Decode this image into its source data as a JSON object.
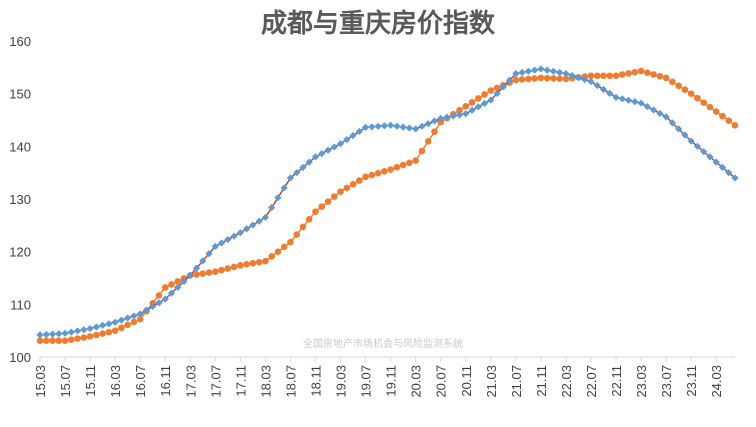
{
  "chart_data": {
    "type": "line",
    "title": "成都与重庆房价指数",
    "watermark": "全国房地产市场机会与风险监测系统",
    "xlabel": "",
    "ylabel": "",
    "ylim": [
      100,
      160
    ],
    "yticks": [
      "100",
      "110",
      "120",
      "130",
      "140",
      "150",
      "160"
    ],
    "grid": false,
    "legend": "none",
    "x_tick_labels": [
      "15.03",
      "15.07",
      "15.11",
      "16.03",
      "16.07",
      "16.11",
      "17.03",
      "17.07",
      "17.11",
      "18.03",
      "18.07",
      "18.11",
      "19.03",
      "19.07",
      "19.11",
      "20.03",
      "20.07",
      "20.11",
      "21.03",
      "21.07",
      "21.11",
      "22.03",
      "22.07",
      "22.11",
      "23.03",
      "23.07",
      "23.11",
      "24.03"
    ],
    "x_start": "2015-03",
    "x_end": "2024-06",
    "series": [
      {
        "name": "",
        "color": "#5B9BD5",
        "line_color": "#C0392B",
        "marker": "diamond",
        "anchors": [
          [
            "2015-03",
            104.2
          ],
          [
            "2015-07",
            104.5
          ],
          [
            "2015-11",
            105.4
          ],
          [
            "2016-03",
            106.6
          ],
          [
            "2016-07",
            108.2
          ],
          [
            "2016-11",
            111.0
          ],
          [
            "2017-03",
            115.5
          ],
          [
            "2017-07",
            121.0
          ],
          [
            "2017-11",
            123.6
          ],
          [
            "2018-03",
            126.5
          ],
          [
            "2018-07",
            134.0
          ],
          [
            "2018-11",
            138.0
          ],
          [
            "2019-03",
            140.5
          ],
          [
            "2019-07",
            143.6
          ],
          [
            "2019-11",
            144.0
          ],
          [
            "2020-03",
            143.3
          ],
          [
            "2020-07",
            145.3
          ],
          [
            "2020-11",
            146.2
          ],
          [
            "2021-03",
            148.8
          ],
          [
            "2021-07",
            153.8
          ],
          [
            "2021-11",
            154.7
          ],
          [
            "2022-03",
            153.8
          ],
          [
            "2022-07",
            152.3
          ],
          [
            "2022-11",
            149.3
          ],
          [
            "2023-03",
            148.2
          ],
          [
            "2023-07",
            145.6
          ],
          [
            "2023-11",
            141.0
          ],
          [
            "2024-03",
            137.0
          ],
          [
            "2024-06",
            134.0
          ]
        ]
      },
      {
        "name": "",
        "color": "#ED7D31",
        "marker": "circle",
        "anchors": [
          [
            "2015-03",
            103.1
          ],
          [
            "2015-07",
            103.1
          ],
          [
            "2015-11",
            103.9
          ],
          [
            "2016-03",
            105.0
          ],
          [
            "2016-07",
            107.2
          ],
          [
            "2016-11",
            113.2
          ],
          [
            "2017-03",
            115.5
          ],
          [
            "2017-07",
            116.2
          ],
          [
            "2017-11",
            117.4
          ],
          [
            "2018-03",
            118.2
          ],
          [
            "2018-07",
            121.8
          ],
          [
            "2018-11",
            127.6
          ],
          [
            "2019-03",
            131.4
          ],
          [
            "2019-07",
            134.2
          ],
          [
            "2019-11",
            135.6
          ],
          [
            "2020-03",
            137.3
          ],
          [
            "2020-07",
            144.6
          ],
          [
            "2020-11",
            147.6
          ],
          [
            "2021-03",
            150.6
          ],
          [
            "2021-07",
            152.6
          ],
          [
            "2021-11",
            153.0
          ],
          [
            "2022-03",
            152.8
          ],
          [
            "2022-07",
            153.4
          ],
          [
            "2022-11",
            153.4
          ],
          [
            "2023-03",
            154.3
          ],
          [
            "2023-07",
            153.0
          ],
          [
            "2023-11",
            150.0
          ],
          [
            "2024-03",
            146.6
          ],
          [
            "2024-06",
            144.0
          ]
        ]
      }
    ]
  }
}
